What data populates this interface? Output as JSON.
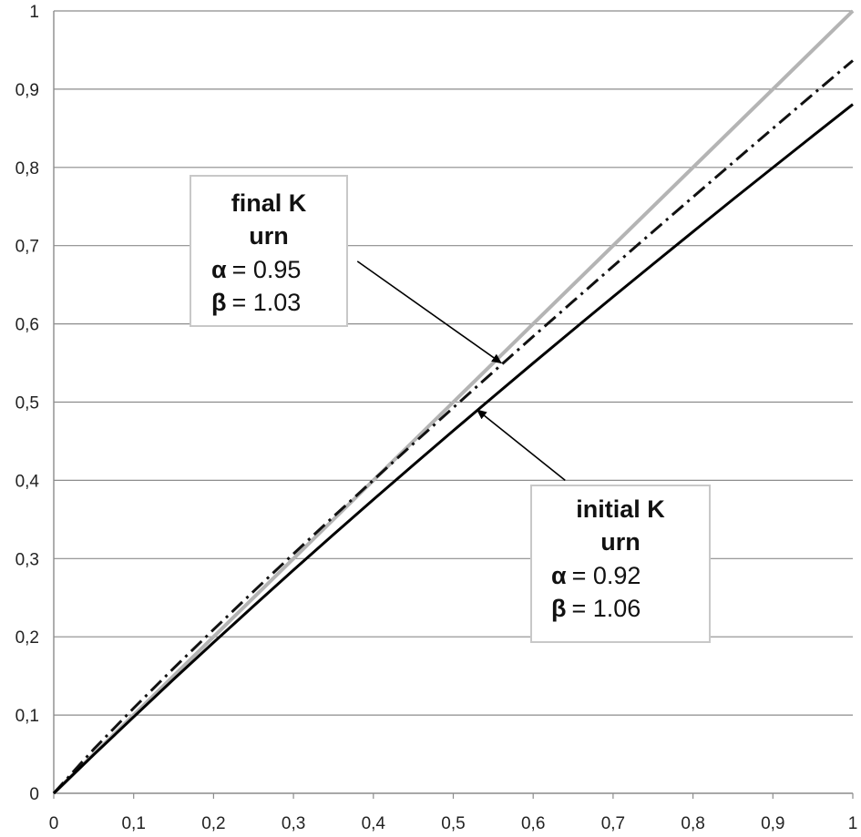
{
  "chart_data": {
    "type": "line",
    "xlim": [
      0,
      1
    ],
    "ylim": [
      0,
      1
    ],
    "x_ticks": [
      "0",
      "0,1",
      "0,2",
      "0,3",
      "0,4",
      "0,5",
      "0,6",
      "0,7",
      "0,8",
      "0,9",
      "1"
    ],
    "y_ticks": [
      "0",
      "0,1",
      "0,2",
      "0,3",
      "0,4",
      "0,5",
      "0,6",
      "0,7",
      "0,8",
      "0,9",
      "1"
    ],
    "grid": "horizontal",
    "series": [
      {
        "style": "solid-gray",
        "color": "#b4b4b4",
        "x": [
          0,
          0.1,
          0.2,
          0.3,
          0.4,
          0.5,
          0.6,
          0.7,
          0.8,
          0.9,
          1
        ],
        "y": [
          0,
          0.1,
          0.2,
          0.3,
          0.4,
          0.5,
          0.6,
          0.7,
          0.8,
          0.9,
          1
        ]
      },
      {
        "style": "dash-dot-black",
        "color": "#111111",
        "alpha": 0.95,
        "beta": 1.03,
        "x": [
          0,
          0.05,
          0.1,
          0.15,
          0.2,
          0.25,
          0.3,
          0.35,
          0.4,
          0.45,
          0.5,
          0.55,
          0.6,
          0.65,
          0.7,
          0.75,
          0.8,
          0.85,
          0.9,
          0.95,
          1
        ],
        "y": [
          0,
          0.0562,
          0.1088,
          0.1597,
          0.2093,
          0.2581,
          0.3061,
          0.3535,
          0.4004,
          0.4469,
          0.4929,
          0.5386,
          0.5839,
          0.6289,
          0.6736,
          0.718,
          0.7622,
          0.8061,
          0.8498,
          0.8933,
          0.9366
        ]
      },
      {
        "style": "solid-black",
        "color": "#000000",
        "alpha": 0.92,
        "beta": 1.06,
        "x": [
          0,
          0.05,
          0.1,
          0.15,
          0.2,
          0.25,
          0.3,
          0.35,
          0.4,
          0.45,
          0.5,
          0.55,
          0.6,
          0.65,
          0.7,
          0.75,
          0.8,
          0.85,
          0.9,
          0.95,
          1
        ],
        "y": [
          0,
          0.0492,
          0.0976,
          0.1456,
          0.1928,
          0.2393,
          0.2853,
          0.3306,
          0.3754,
          0.4197,
          0.4635,
          0.5069,
          0.5498,
          0.5924,
          0.6346,
          0.6764,
          0.7178,
          0.759,
          0.7998,
          0.8403,
          0.8806
        ]
      }
    ],
    "annotations": [
      {
        "id": "final",
        "line1": "final K",
        "line2": "urn",
        "alpha_sym": "α",
        "alpha_val": "= 0.95",
        "beta_sym": "β",
        "beta_val": "= 1.03",
        "arrow_from": [
          0.38,
          0.68
        ],
        "arrow_to": [
          0.56,
          0.55
        ]
      },
      {
        "id": "initial",
        "line1": "initial K",
        "line2": "urn",
        "alpha_sym": "α",
        "alpha_val": "= 0.92",
        "beta_sym": "β",
        "beta_val": "= 1.06",
        "arrow_from": [
          0.64,
          0.4
        ],
        "arrow_to": [
          0.53,
          0.49
        ]
      }
    ]
  }
}
